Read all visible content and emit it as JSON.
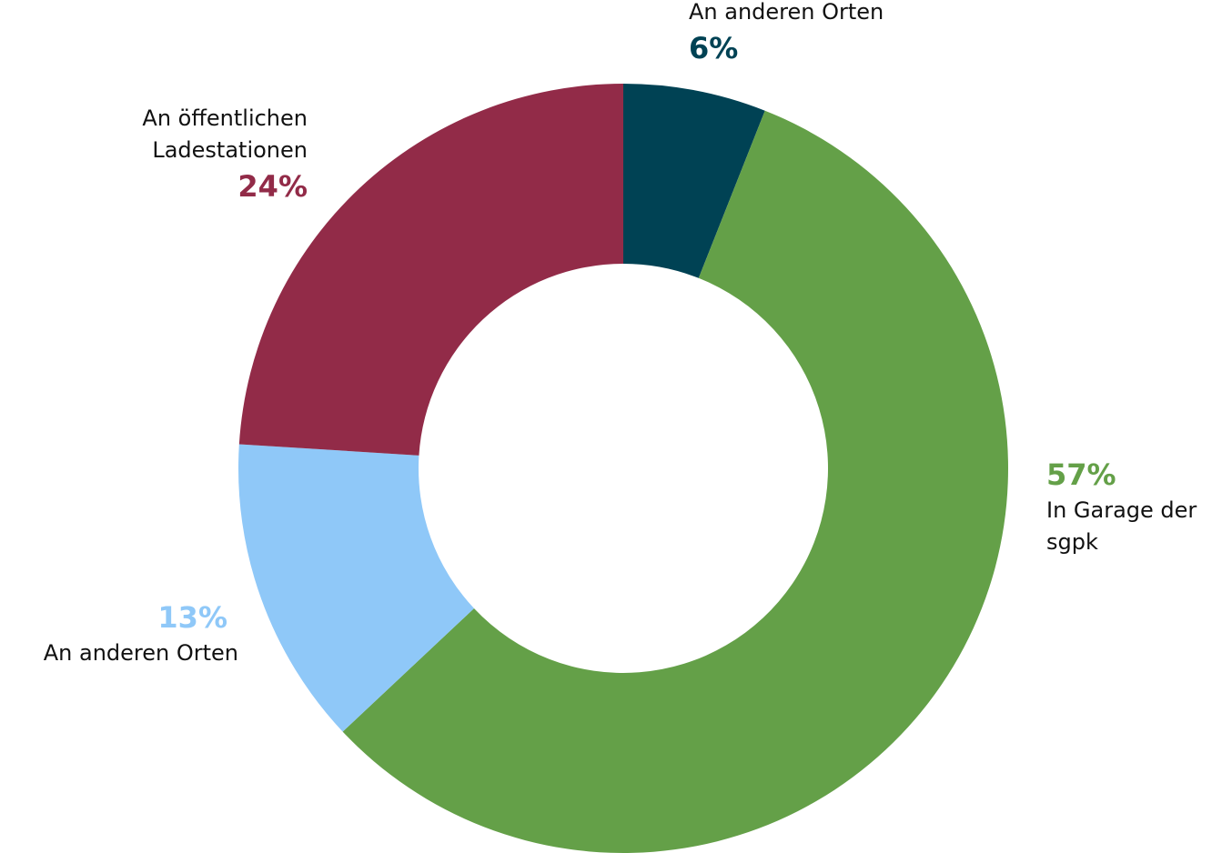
{
  "chart_data": {
    "type": "donut",
    "categories": [
      "An anderen Orten",
      "In Garage der sgpk",
      "An anderen Orten",
      "An öffentlichen Ladestationen"
    ],
    "values": [
      6,
      57,
      13,
      24
    ],
    "value_labels": [
      "6%",
      "57%",
      "13%",
      "24%"
    ],
    "colors": [
      "#004254",
      "#64a048",
      "#8fc8f8",
      "#922b48"
    ]
  }
}
